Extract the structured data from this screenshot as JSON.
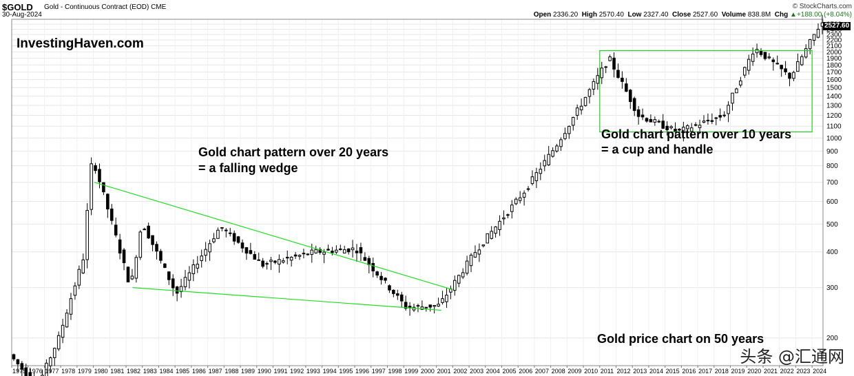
{
  "header": {
    "symbol": "$GOLD",
    "description": "Gold - Continuous Contract (EOD)",
    "exchange": "CME",
    "date": "30-Aug-2024",
    "credit": "© StockCharts.com",
    "open_label": "Open",
    "open": "2336.20",
    "high_label": "High",
    "high": "2570.40",
    "low_label": "Low",
    "low": "2327.40",
    "close_label": "Close",
    "close": "2527.60",
    "volume_label": "Volume",
    "volume": "838.8M",
    "chg_label": "Chg",
    "chg": "+188.00 (+8.04%)",
    "chg_icon": "up-arrow-icon"
  },
  "annotations": {
    "watermark": "InvestingHaven.com",
    "pattern20_line1": "Gold chart pattern over 20 years",
    "pattern20_line2": "= a falling wedge",
    "pattern10_line1": "Gold chart pattern over 10 years",
    "pattern10_line2": "= a cup and handle",
    "footer": "Gold price chart on 50 years",
    "source": "头条 @汇通网"
  },
  "last_price_tag": "2527.60",
  "colors": {
    "wedge": "#22dd22",
    "box": "#22cc22",
    "candle": "#000000",
    "grid": "#e6e6e6",
    "change": "#1a7a1a"
  },
  "chart_data": {
    "type": "candlestick",
    "scale": "log",
    "ylim": [
      160,
      2600
    ],
    "y_ticks": [
      200,
      300,
      400,
      500,
      600,
      700,
      800,
      900,
      1000,
      1100,
      1200,
      1300,
      1400,
      1500,
      1600,
      1700,
      1800,
      1900,
      2000,
      2100,
      2200,
      2300,
      2400,
      2500
    ],
    "x_ticks": [
      "1975",
      "1976",
      "1977",
      "1978",
      "1979",
      "1980",
      "1981",
      "1982",
      "1983",
      "1984",
      "1985",
      "1986",
      "1987",
      "1988",
      "1989",
      "1990",
      "1991",
      "1992",
      "1993",
      "1994",
      "1995",
      "1996",
      "1997",
      "1998",
      "1999",
      "2000",
      "2001",
      "2002",
      "2003",
      "2004",
      "2005",
      "2006",
      "2007",
      "2008",
      "2009",
      "2010",
      "2011",
      "2012",
      "2013",
      "2014",
      "2015",
      "2016",
      "2017",
      "2018",
      "2019",
      "2020",
      "2021",
      "2022",
      "2023",
      "2024"
    ],
    "x_range": [
      1975,
      2024.67
    ],
    "key_points": [
      {
        "x": 1975.0,
        "y": 175
      },
      {
        "x": 1976.7,
        "y": 135
      },
      {
        "x": 1978.0,
        "y": 200
      },
      {
        "x": 1979.5,
        "y": 380
      },
      {
        "x": 1980.05,
        "y": 860
      },
      {
        "x": 1980.8,
        "y": 620
      },
      {
        "x": 1982.4,
        "y": 300
      },
      {
        "x": 1983.1,
        "y": 510
      },
      {
        "x": 1985.2,
        "y": 285
      },
      {
        "x": 1987.9,
        "y": 490
      },
      {
        "x": 1990.5,
        "y": 360
      },
      {
        "x": 1993.7,
        "y": 400
      },
      {
        "x": 1996.2,
        "y": 410
      },
      {
        "x": 1999.3,
        "y": 255
      },
      {
        "x": 2001.3,
        "y": 260
      },
      {
        "x": 2003.5,
        "y": 400
      },
      {
        "x": 2006.5,
        "y": 650
      },
      {
        "x": 2008.5,
        "y": 950
      },
      {
        "x": 2011.7,
        "y": 1900
      },
      {
        "x": 2013.5,
        "y": 1200
      },
      {
        "x": 2015.9,
        "y": 1050
      },
      {
        "x": 2018.7,
        "y": 1200
      },
      {
        "x": 2020.6,
        "y": 2070
      },
      {
        "x": 2022.8,
        "y": 1630
      },
      {
        "x": 2024.67,
        "y": 2527.6
      }
    ],
    "falling_wedge": {
      "upper": [
        {
          "x": 1980.05,
          "y": 700
        },
        {
          "x": 2002.0,
          "y": 295
        }
      ],
      "lower": [
        {
          "x": 1982.4,
          "y": 300
        },
        {
          "x": 2001.3,
          "y": 250
        }
      ]
    },
    "cup_and_handle_box": {
      "x": [
        2011.0,
        2024.0
      ],
      "y": [
        1050,
        2020
      ]
    }
  }
}
